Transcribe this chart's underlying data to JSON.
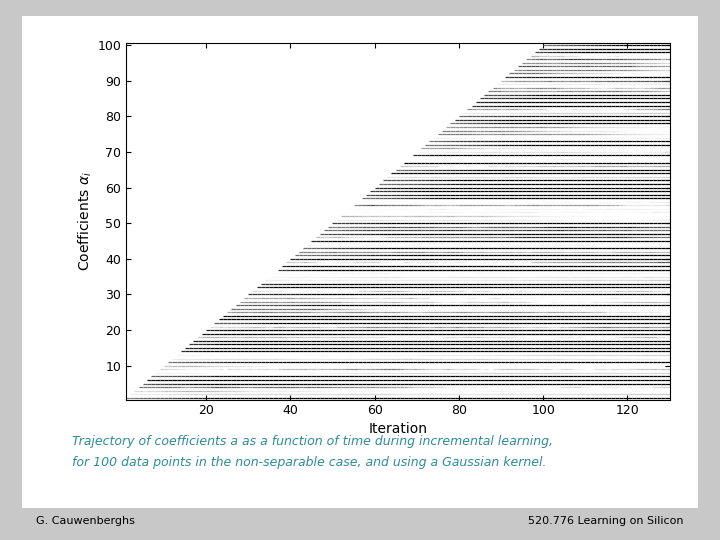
{
  "xlabel": "Iteration",
  "ylabel": "Coefficients $\\alpha_i$",
  "xlim": [
    1,
    130
  ],
  "ylim": [
    0.5,
    100.5
  ],
  "xticks": [
    20,
    40,
    60,
    80,
    100,
    120
  ],
  "yticks": [
    10,
    20,
    30,
    40,
    50,
    60,
    70,
    80,
    90,
    100
  ],
  "n_points": 100,
  "n_iter": 130,
  "caption_line1": "Trajectory of coefficients a as a function of time during incremental learning,",
  "caption_line2": "for 100 data points in the non-separable case, and using a Gaussian kernel.",
  "caption_color": "#2E8B9A",
  "footer_left": "G. Cauwenberghs",
  "footer_right": "520.776 Learning on Silicon",
  "outer_bg": "#c8c8c8",
  "inner_bg": "#ffffff",
  "seed": 42
}
